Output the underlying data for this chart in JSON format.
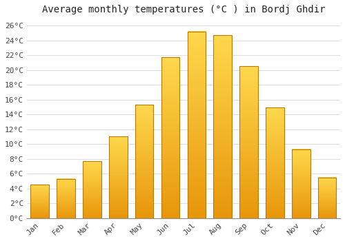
{
  "title": "Average monthly temperatures (°C ) in Bordj Ghdir",
  "months": [
    "Jan",
    "Feb",
    "Mar",
    "Apr",
    "May",
    "Jun",
    "Jul",
    "Aug",
    "Sep",
    "Oct",
    "Nov",
    "Dec"
  ],
  "values": [
    4.5,
    5.3,
    7.7,
    11.0,
    15.3,
    21.7,
    25.2,
    24.7,
    20.5,
    14.9,
    9.3,
    5.5
  ],
  "ylim": [
    0,
    27
  ],
  "yticks": [
    0,
    2,
    4,
    6,
    8,
    10,
    12,
    14,
    16,
    18,
    20,
    22,
    24,
    26
  ],
  "ytick_labels": [
    "0°C",
    "2°C",
    "4°C",
    "6°C",
    "8°C",
    "10°C",
    "12°C",
    "14°C",
    "16°C",
    "18°C",
    "20°C",
    "22°C",
    "24°C",
    "26°C"
  ],
  "bar_color_bottom": "#E8960A",
  "bar_color_top": "#FFD84D",
  "bar_edge_color": "#B8780A",
  "background_color": "#FFFFFF",
  "grid_color": "#DDDDDD",
  "title_fontsize": 10,
  "tick_fontsize": 8,
  "figsize": [
    5.0,
    3.5
  ],
  "dpi": 100,
  "bar_width": 0.7
}
